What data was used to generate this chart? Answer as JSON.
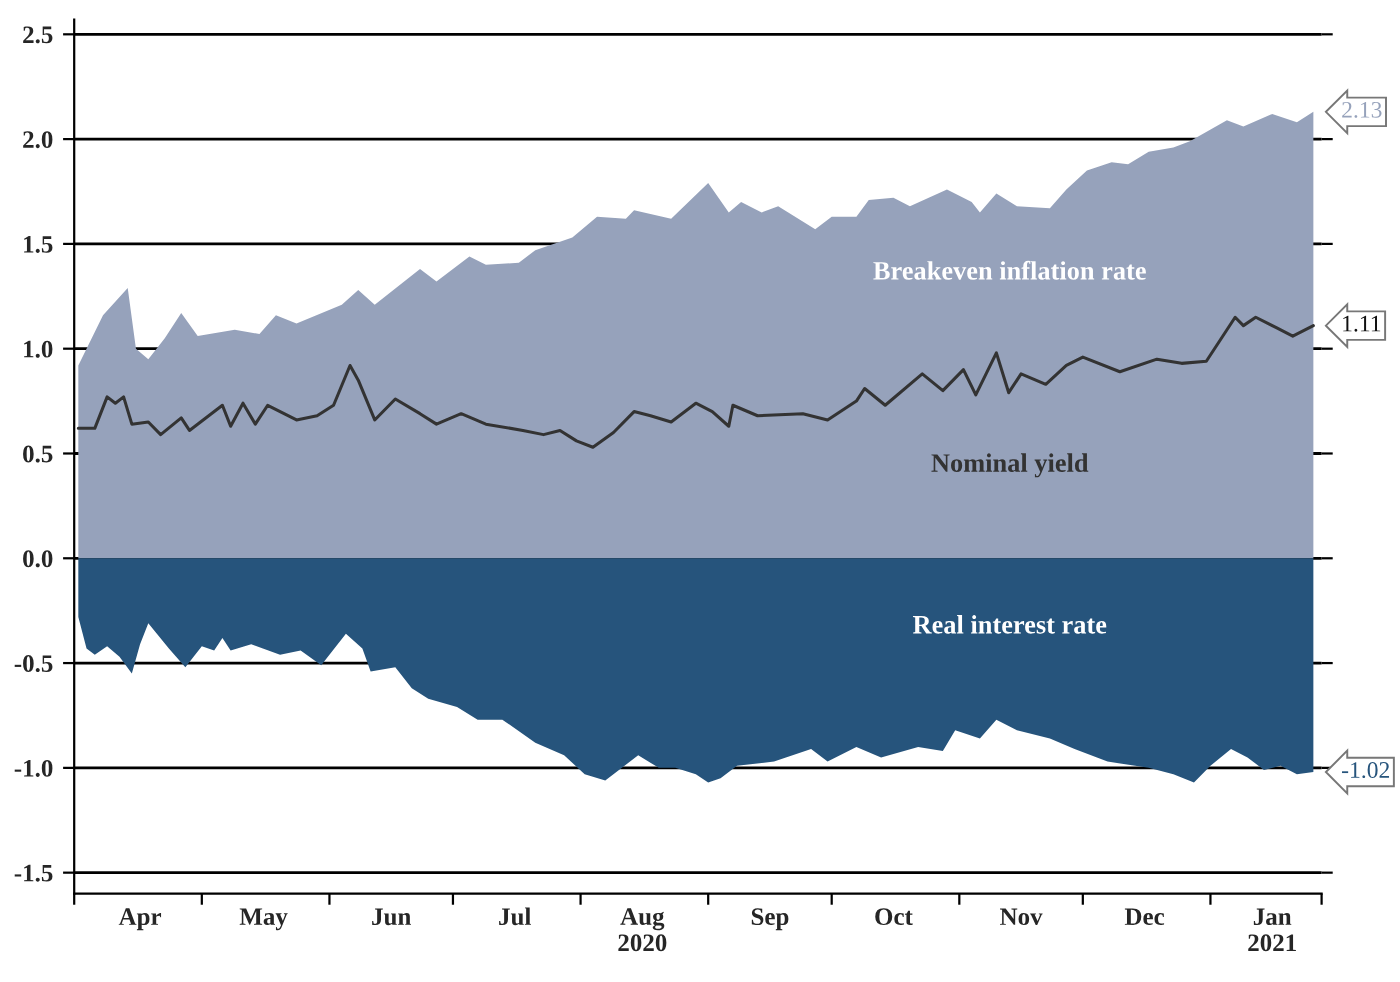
{
  "chart_data": {
    "type": "area",
    "xlim": [
      "2020-03-31",
      "2021-01-28"
    ],
    "xticks": [
      {
        "value": "2020-04-16",
        "label": "Apr"
      },
      {
        "value": "2020-05-16",
        "label": "May"
      },
      {
        "value": "2020-06-16",
        "label": "Jun"
      },
      {
        "value": "2020-07-16",
        "label": "Jul"
      },
      {
        "value": "2020-08-16",
        "label": "Aug\n2020"
      },
      {
        "value": "2020-09-16",
        "label": "Sep"
      },
      {
        "value": "2020-10-16",
        "label": "Oct"
      },
      {
        "value": "2020-11-16",
        "label": "Nov"
      },
      {
        "value": "2020-12-16",
        "label": "Dec"
      },
      {
        "value": "2021-01-16",
        "label": "Jan\n2021"
      },
      {
        "value": "2020-03-31",
        "label": null
      },
      {
        "value": "2020-05-01",
        "label": null
      },
      {
        "value": "2020-06-01",
        "label": null
      },
      {
        "value": "2020-07-01",
        "label": null
      },
      {
        "value": "2020-08-01",
        "label": null
      },
      {
        "value": "2020-09-01",
        "label": null
      },
      {
        "value": "2020-10-01",
        "label": null
      },
      {
        "value": "2020-11-01",
        "label": null
      },
      {
        "value": "2020-12-01",
        "label": null
      },
      {
        "value": "2021-01-01",
        "label": null
      },
      {
        "value": "2021-01-28",
        "label": null
      }
    ],
    "ylim": [
      -1.6,
      2.57
    ],
    "yticks": [
      {
        "value": -1.5,
        "label": "-1.5"
      },
      {
        "value": -1.0,
        "label": "-1.0"
      },
      {
        "value": -0.5,
        "label": "-0.5"
      },
      {
        "value": 0.0,
        "label": "0.0"
      },
      {
        "value": 0.5,
        "label": "0.5"
      },
      {
        "value": 1.0,
        "label": "1.0"
      },
      {
        "value": 1.5,
        "label": "1.5"
      },
      {
        "value": 2.0,
        "label": "2.0"
      },
      {
        "value": 2.5,
        "label": "2.5"
      }
    ],
    "grid": "y",
    "legend": false,
    "series": [
      {
        "name": "Breakeven inflation rate",
        "type": "area",
        "color": "#96a2bb",
        "x": [
          "2020-04-01",
          "2020-04-07",
          "2020-04-13",
          "2020-04-15",
          "2020-04-18",
          "2020-04-22",
          "2020-04-26",
          "2020-04-30",
          "2020-05-09",
          "2020-05-15",
          "2020-05-19",
          "2020-05-24",
          "2020-06-04",
          "2020-06-08",
          "2020-06-12",
          "2020-06-23",
          "2020-06-27",
          "2020-07-05",
          "2020-07-09",
          "2020-07-17",
          "2020-07-21",
          "2020-07-30",
          "2020-08-05",
          "2020-08-12",
          "2020-08-14",
          "2020-08-23",
          "2020-09-01",
          "2020-09-06",
          "2020-09-09",
          "2020-09-14",
          "2020-09-18",
          "2020-09-27",
          "2020-10-01",
          "2020-10-07",
          "2020-10-10",
          "2020-10-16",
          "2020-10-20",
          "2020-10-29",
          "2020-11-04",
          "2020-11-06",
          "2020-11-10",
          "2020-11-15",
          "2020-11-23",
          "2020-11-27",
          "2020-12-02",
          "2020-12-08",
          "2020-12-12",
          "2020-12-17",
          "2020-12-23",
          "2020-12-27",
          "2021-01-05",
          "2021-01-09",
          "2021-01-16",
          "2021-01-22",
          "2021-01-26"
        ],
        "values": [
          0.92,
          1.16,
          1.29,
          1.0,
          0.95,
          1.05,
          1.17,
          1.06,
          1.09,
          1.07,
          1.16,
          1.12,
          1.21,
          1.28,
          1.21,
          1.38,
          1.32,
          1.44,
          1.4,
          1.41,
          1.47,
          1.53,
          1.63,
          1.62,
          1.66,
          1.62,
          1.79,
          1.65,
          1.7,
          1.65,
          1.68,
          1.57,
          1.63,
          1.63,
          1.71,
          1.72,
          1.68,
          1.76,
          1.7,
          1.65,
          1.74,
          1.68,
          1.67,
          1.76,
          1.85,
          1.89,
          1.88,
          1.94,
          1.96,
          1.99,
          2.09,
          2.06,
          2.12,
          2.08,
          2.13
        ],
        "value_labels": [
          null,
          null,
          null,
          null,
          null,
          null,
          null,
          null,
          null,
          null,
          null,
          null,
          null,
          null,
          null,
          null,
          null,
          null,
          null,
          null,
          null,
          null,
          null,
          null,
          null,
          null,
          null,
          null,
          null,
          null,
          null,
          null,
          null,
          null,
          null,
          null,
          null,
          null,
          null,
          null,
          null,
          null,
          null,
          null,
          null,
          null,
          null,
          null,
          null,
          null,
          null,
          null,
          null,
          null,
          "2.13"
        ]
      },
      {
        "name": "Real interest rate",
        "type": "area",
        "color": "#26547c",
        "x": [
          "2020-04-01",
          "2020-04-03",
          "2020-04-05",
          "2020-04-08",
          "2020-04-11",
          "2020-04-14",
          "2020-04-16",
          "2020-04-18",
          "2020-04-23",
          "2020-04-27",
          "2020-05-01",
          "2020-05-04",
          "2020-05-06",
          "2020-05-08",
          "2020-05-13",
          "2020-05-20",
          "2020-05-25",
          "2020-05-30",
          "2020-06-05",
          "2020-06-09",
          "2020-06-11",
          "2020-06-17",
          "2020-06-21",
          "2020-06-25",
          "2020-07-02",
          "2020-07-07",
          "2020-07-13",
          "2020-07-21",
          "2020-07-28",
          "2020-08-02",
          "2020-08-07",
          "2020-08-15",
          "2020-08-20",
          "2020-08-24",
          "2020-08-29",
          "2020-09-01",
          "2020-09-04",
          "2020-09-08",
          "2020-09-17",
          "2020-09-26",
          "2020-09-30",
          "2020-10-07",
          "2020-10-13",
          "2020-10-22",
          "2020-10-28",
          "2020-10-31",
          "2020-11-06",
          "2020-11-10",
          "2020-11-15",
          "2020-11-23",
          "2020-11-29",
          "2020-12-07",
          "2020-12-17",
          "2020-12-23",
          "2020-12-28",
          "2021-01-01",
          "2021-01-06",
          "2021-01-10",
          "2021-01-14",
          "2021-01-18",
          "2021-01-22",
          "2021-01-26"
        ],
        "values": [
          -0.28,
          -0.43,
          -0.46,
          -0.42,
          -0.47,
          -0.55,
          -0.41,
          -0.31,
          -0.43,
          -0.52,
          -0.42,
          -0.44,
          -0.38,
          -0.44,
          -0.41,
          -0.46,
          -0.44,
          -0.51,
          -0.36,
          -0.43,
          -0.54,
          -0.52,
          -0.62,
          -0.67,
          -0.71,
          -0.77,
          -0.77,
          -0.88,
          -0.94,
          -1.03,
          -1.06,
          -0.94,
          -1.0,
          -1.0,
          -1.03,
          -1.07,
          -1.05,
          -0.99,
          -0.97,
          -0.91,
          -0.97,
          -0.9,
          -0.95,
          -0.9,
          -0.92,
          -0.82,
          -0.86,
          -0.77,
          -0.82,
          -0.86,
          -0.91,
          -0.97,
          -1.0,
          -1.03,
          -1.07,
          -0.99,
          -0.91,
          -0.95,
          -1.01,
          -0.99,
          -1.03,
          -1.02
        ],
        "value_labels": [
          null,
          null,
          null,
          null,
          null,
          null,
          null,
          null,
          null,
          null,
          null,
          null,
          null,
          null,
          null,
          null,
          null,
          null,
          null,
          null,
          null,
          null,
          null,
          null,
          null,
          null,
          null,
          null,
          null,
          null,
          null,
          null,
          null,
          null,
          null,
          null,
          null,
          null,
          null,
          null,
          null,
          null,
          null,
          null,
          null,
          null,
          null,
          null,
          null,
          null,
          null,
          null,
          null,
          null,
          null,
          null,
          null,
          null,
          null,
          null,
          null,
          "-1.02"
        ]
      },
      {
        "name": "Nominal yield",
        "type": "line",
        "color": "#333333",
        "x": [
          "2020-04-01",
          "2020-04-05",
          "2020-04-08",
          "2020-04-10",
          "2020-04-12",
          "2020-04-14",
          "2020-04-18",
          "2020-04-21",
          "2020-04-26",
          "2020-04-28",
          "2020-05-06",
          "2020-05-08",
          "2020-05-11",
          "2020-05-14",
          "2020-05-17",
          "2020-05-24",
          "2020-05-29",
          "2020-06-02",
          "2020-06-06",
          "2020-06-08",
          "2020-06-12",
          "2020-06-17",
          "2020-06-23",
          "2020-06-27",
          "2020-07-03",
          "2020-07-09",
          "2020-07-18",
          "2020-07-23",
          "2020-07-27",
          "2020-07-31",
          "2020-08-04",
          "2020-08-09",
          "2020-08-14",
          "2020-08-18",
          "2020-08-23",
          "2020-08-29",
          "2020-09-02",
          "2020-09-06",
          "2020-09-07",
          "2020-09-13",
          "2020-09-24",
          "2020-09-30",
          "2020-10-07",
          "2020-10-09",
          "2020-10-14",
          "2020-10-23",
          "2020-10-28",
          "2020-11-02",
          "2020-11-05",
          "2020-11-10",
          "2020-11-13",
          "2020-11-16",
          "2020-11-22",
          "2020-11-27",
          "2020-12-01",
          "2020-12-10",
          "2020-12-19",
          "2020-12-25",
          "2020-12-31",
          "2021-01-07",
          "2021-01-09",
          "2021-01-12",
          "2021-01-17",
          "2021-01-21",
          "2021-01-26"
        ],
        "values": [
          0.62,
          0.62,
          0.77,
          0.74,
          0.77,
          0.64,
          0.65,
          0.59,
          0.67,
          0.61,
          0.73,
          0.63,
          0.74,
          0.64,
          0.73,
          0.66,
          0.68,
          0.73,
          0.92,
          0.85,
          0.66,
          0.76,
          0.69,
          0.64,
          0.69,
          0.64,
          0.61,
          0.59,
          0.61,
          0.56,
          0.53,
          0.6,
          0.7,
          0.68,
          0.65,
          0.74,
          0.7,
          0.63,
          0.73,
          0.68,
          0.69,
          0.66,
          0.75,
          0.81,
          0.73,
          0.88,
          0.8,
          0.9,
          0.78,
          0.98,
          0.79,
          0.88,
          0.83,
          0.92,
          0.96,
          0.89,
          0.95,
          0.93,
          0.94,
          1.15,
          1.11,
          1.15,
          1.1,
          1.06,
          1.11
        ],
        "value_labels": [
          null,
          null,
          null,
          null,
          null,
          null,
          null,
          null,
          null,
          null,
          null,
          null,
          null,
          null,
          null,
          null,
          null,
          null,
          null,
          null,
          null,
          null,
          null,
          null,
          null,
          null,
          null,
          null,
          null,
          null,
          null,
          null,
          null,
          null,
          null,
          null,
          null,
          null,
          null,
          null,
          null,
          null,
          null,
          null,
          null,
          null,
          null,
          null,
          null,
          null,
          null,
          null,
          null,
          null,
          null,
          null,
          null,
          null,
          null,
          null,
          null,
          null,
          null,
          null,
          "1.11"
        ]
      }
    ]
  }
}
